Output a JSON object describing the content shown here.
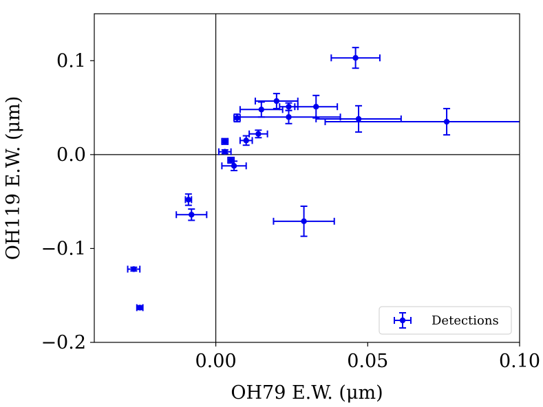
{
  "chart_data": {
    "type": "scatter",
    "title": "",
    "xlabel": "OH79 E.W. (μm)",
    "ylabel": "OH119 E.W. (μm)",
    "xlim": [
      -0.04,
      0.1
    ],
    "ylim": [
      -0.2,
      0.15
    ],
    "xticks": [
      0.0,
      0.05,
      0.1
    ],
    "xtick_labels": [
      "0.00",
      "0.05",
      "0.10"
    ],
    "yticks": [
      -0.2,
      -0.1,
      0.0,
      0.1
    ],
    "ytick_labels": [
      "−0.2",
      "−0.1",
      "0.0",
      "0.1"
    ],
    "reference_lines": {
      "x": 0.0,
      "y": 0.0
    },
    "color": "#0000ee",
    "legend": {
      "label": "Detections",
      "position": "lower-right"
    },
    "series": [
      {
        "name": "Detections",
        "points": [
          {
            "x": 0.046,
            "y": 0.103,
            "xerr": 0.008,
            "yerr": 0.011
          },
          {
            "x": 0.02,
            "y": 0.057,
            "xerr": 0.007,
            "yerr": 0.008
          },
          {
            "x": 0.015,
            "y": 0.048,
            "xerr": 0.007,
            "yerr": 0.008
          },
          {
            "x": 0.024,
            "y": 0.051,
            "xerr": 0.003,
            "yerr": 0.004
          },
          {
            "x": 0.033,
            "y": 0.051,
            "xerr": 0.007,
            "yerr": 0.012
          },
          {
            "x": 0.024,
            "y": 0.04,
            "xerr": 0.017,
            "yerr": 0.007
          },
          {
            "x": 0.047,
            "y": 0.038,
            "xerr": 0.014,
            "yerr": 0.014
          },
          {
            "x": 0.076,
            "y": 0.035,
            "xerr": 0.04,
            "yerr": 0.014
          },
          {
            "x": 0.007,
            "y": 0.039,
            "xerr": 0.001,
            "yerr": 0.004
          },
          {
            "x": 0.014,
            "y": 0.022,
            "xerr": 0.003,
            "yerr": 0.004
          },
          {
            "x": 0.01,
            "y": 0.015,
            "xerr": 0.002,
            "yerr": 0.005
          },
          {
            "x": 0.003,
            "y": 0.014,
            "xerr": 0.001,
            "yerr": 0.003
          },
          {
            "x": 0.003,
            "y": 0.003,
            "xerr": 0.002,
            "yerr": 0.002
          },
          {
            "x": 0.005,
            "y": -0.006,
            "xerr": 0.001,
            "yerr": 0.003
          },
          {
            "x": 0.006,
            "y": -0.012,
            "xerr": 0.004,
            "yerr": 0.005
          },
          {
            "x": -0.009,
            "y": -0.048,
            "xerr": 0.001,
            "yerr": 0.006
          },
          {
            "x": -0.008,
            "y": -0.064,
            "xerr": 0.005,
            "yerr": 0.006
          },
          {
            "x": 0.029,
            "y": -0.071,
            "xerr": 0.01,
            "yerr": 0.016
          },
          {
            "x": -0.027,
            "y": -0.122,
            "xerr": 0.002,
            "yerr": 0.002
          },
          {
            "x": -0.025,
            "y": -0.163,
            "xerr": 0.001,
            "yerr": 0.002
          }
        ]
      }
    ]
  }
}
